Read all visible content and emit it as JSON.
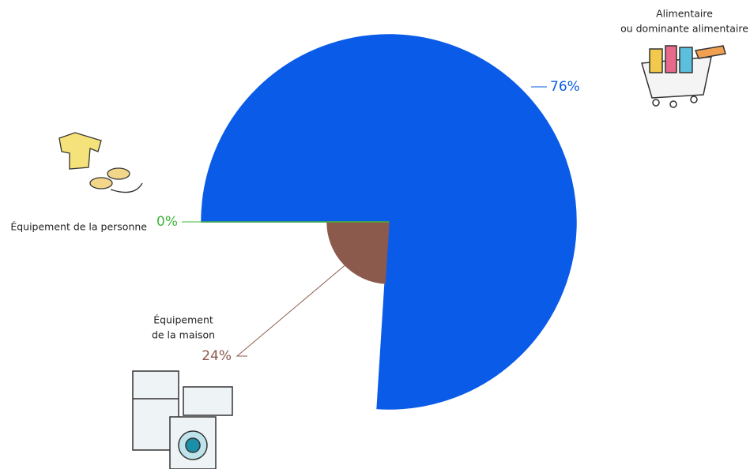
{
  "chart_data": {
    "type": "pie",
    "categories": [
      [
        "Alimentaire",
        "ou dominante alimentaire"
      ],
      [
        "Équipement",
        "de la maison"
      ],
      [
        "Équipement de la personne"
      ]
    ],
    "values": [
      76,
      24,
      0
    ],
    "value_labels": [
      "76%",
      "24%",
      "0%"
    ],
    "colors": [
      "#0a5be8",
      "#8c5a4c",
      "#3fb53a"
    ]
  }
}
